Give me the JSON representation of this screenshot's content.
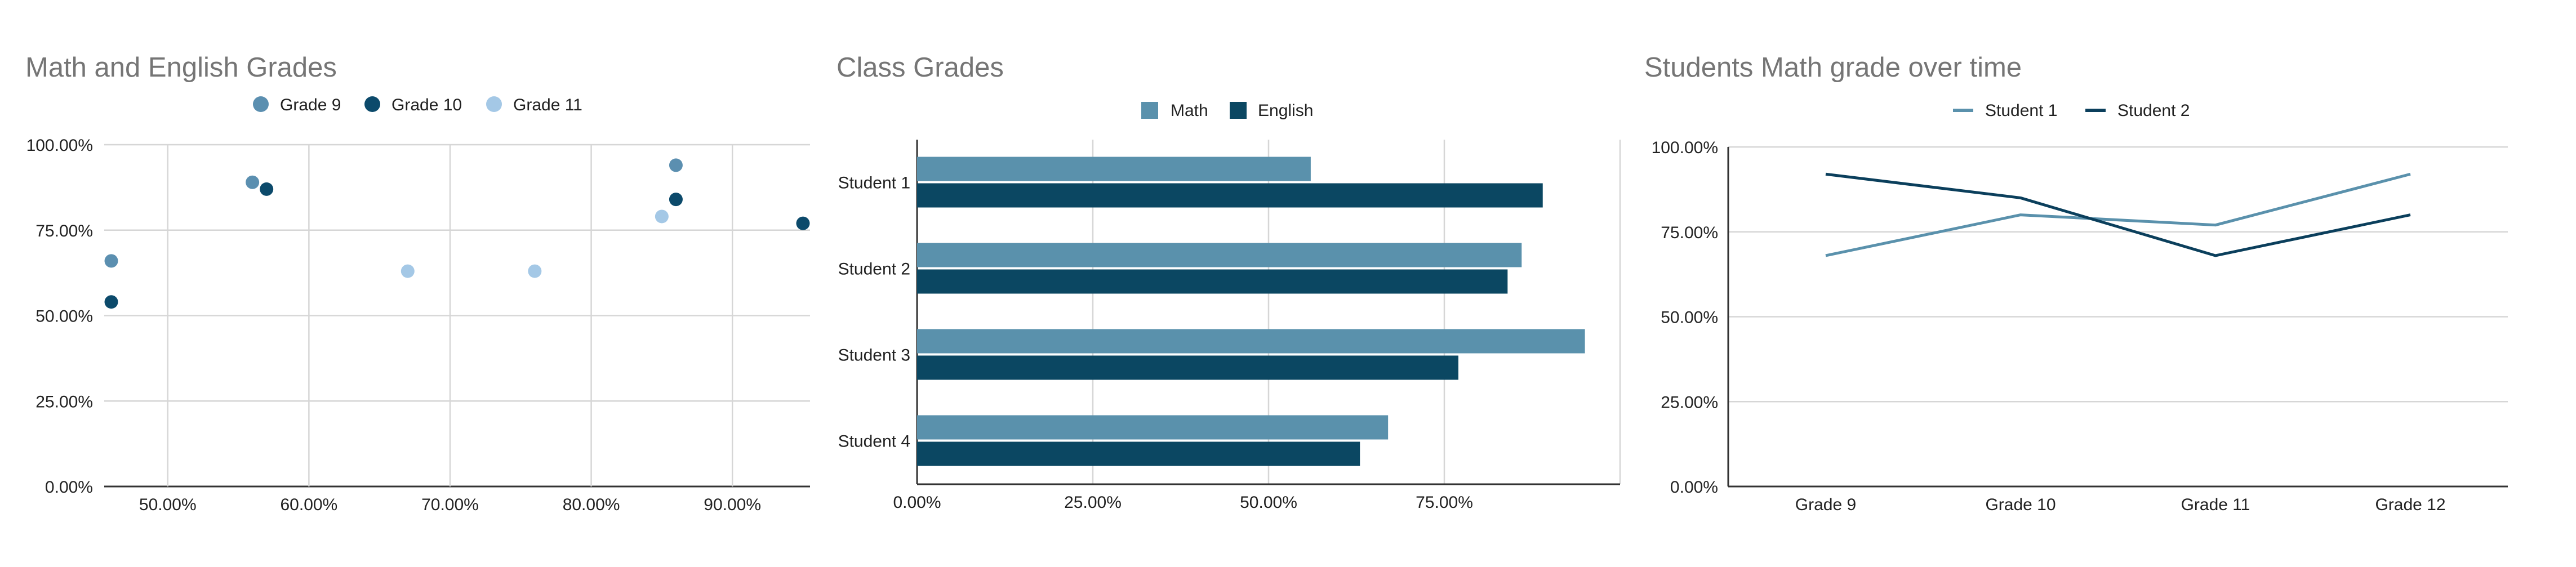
{
  "chart_data": [
    {
      "type": "scatter",
      "title": "Math and English Grades",
      "xlabel": "",
      "ylabel": "",
      "xlim": [
        0.455,
        0.955
      ],
      "ylim": [
        0,
        1
      ],
      "x_ticks": [
        0.5,
        0.6,
        0.7,
        0.8,
        0.9
      ],
      "x_tick_labels": [
        "50.00%",
        "60.00%",
        "70.00%",
        "80.00%",
        "90.00%"
      ],
      "y_ticks": [
        0,
        0.25,
        0.5,
        0.75,
        1
      ],
      "y_tick_labels": [
        "0.00%",
        "25.00%",
        "50.00%",
        "75.00%",
        "100.00%"
      ],
      "grid": true,
      "legend": "top-center",
      "series": [
        {
          "name": "Grade 9",
          "color": "#5b8fb0",
          "points": [
            [
              0.46,
              0.66
            ],
            [
              0.56,
              0.89
            ],
            [
              0.86,
              0.94
            ]
          ]
        },
        {
          "name": "Grade 10",
          "color": "#0c4a6b",
          "points": [
            [
              0.46,
              0.54
            ],
            [
              0.57,
              0.87
            ],
            [
              0.86,
              0.84
            ],
            [
              0.95,
              0.77
            ]
          ]
        },
        {
          "name": "Grade 11",
          "color": "#a4c8e6",
          "points": [
            [
              0.67,
              0.63
            ],
            [
              0.76,
              0.63
            ],
            [
              0.85,
              0.79
            ]
          ]
        }
      ]
    },
    {
      "type": "bar",
      "orientation": "horizontal",
      "title": "Class Grades",
      "xlabel": "",
      "ylabel": "",
      "xlim": [
        0,
        1
      ],
      "x_ticks": [
        0,
        0.25,
        0.5,
        0.75
      ],
      "x_tick_labels": [
        "0.00%",
        "25.00%",
        "50.00%",
        "75.00%"
      ],
      "grid": true,
      "legend": "top-center",
      "categories": [
        "Student 1",
        "Student 2",
        "Student 3",
        "Student 4"
      ],
      "series": [
        {
          "name": "Math",
          "color": "#5a91ac",
          "values": [
            0.56,
            0.86,
            0.95,
            0.67
          ]
        },
        {
          "name": "English",
          "color": "#0b4762",
          "values": [
            0.89,
            0.84,
            0.77,
            0.63
          ]
        }
      ]
    },
    {
      "type": "line",
      "title": "Students Math grade over time",
      "xlabel": "",
      "ylabel": "",
      "ylim": [
        0,
        1
      ],
      "y_ticks": [
        0,
        0.25,
        0.5,
        0.75,
        1
      ],
      "y_tick_labels": [
        "0.00%",
        "25.00%",
        "50.00%",
        "75.00%",
        "100.00%"
      ],
      "grid": true,
      "legend": "top-center",
      "categories": [
        "Grade 9",
        "Grade 10",
        "Grade 11",
        "Grade 12"
      ],
      "series": [
        {
          "name": "Student 1",
          "color": "#5a91ac",
          "values": [
            0.68,
            0.8,
            0.77,
            0.92
          ]
        },
        {
          "name": "Student 2",
          "color": "#0b3f5c",
          "values": [
            0.92,
            0.85,
            0.68,
            0.8
          ]
        }
      ]
    }
  ]
}
